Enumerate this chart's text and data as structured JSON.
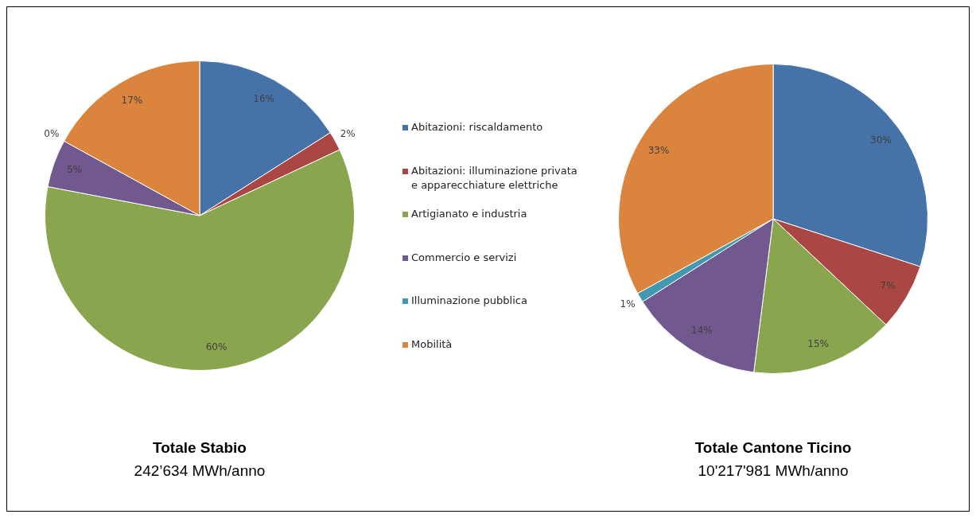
{
  "chart_data": [
    {
      "type": "pie",
      "title": "Totale Stabio",
      "subtitle": "242’634 MWh/anno",
      "categories": [
        "Abitazioni: riscaldamento",
        "Abitazioni: illuminazione privata e apparecchiature elettriche",
        "Artigianato e industria",
        "Commercio e servizi",
        "Illuminazione pubblica",
        "Mobilità"
      ],
      "values": [
        16,
        2,
        60,
        5,
        0,
        17
      ],
      "colors": [
        "#4572a7",
        "#aa4643",
        "#89a54e",
        "#71588f",
        "#4198af",
        "#db843d"
      ],
      "value_labels": [
        "16%",
        "2%",
        "60%",
        "5%",
        "0%",
        "17%"
      ],
      "legend": "right"
    },
    {
      "type": "pie",
      "title": "Totale Cantone Ticino",
      "subtitle": "10'217'981 MWh/anno",
      "categories": [
        null,
        null,
        null,
        null,
        null,
        null
      ],
      "values": [
        30,
        7,
        15,
        14,
        1,
        33
      ],
      "colors": [
        "#4572a7",
        "#aa4643",
        "#89a54e",
        "#71588f",
        "#4198af",
        "#db843d"
      ],
      "value_labels": [
        "30%",
        "7%",
        "15%",
        "14%",
        "1%",
        "33%"
      ]
    }
  ]
}
